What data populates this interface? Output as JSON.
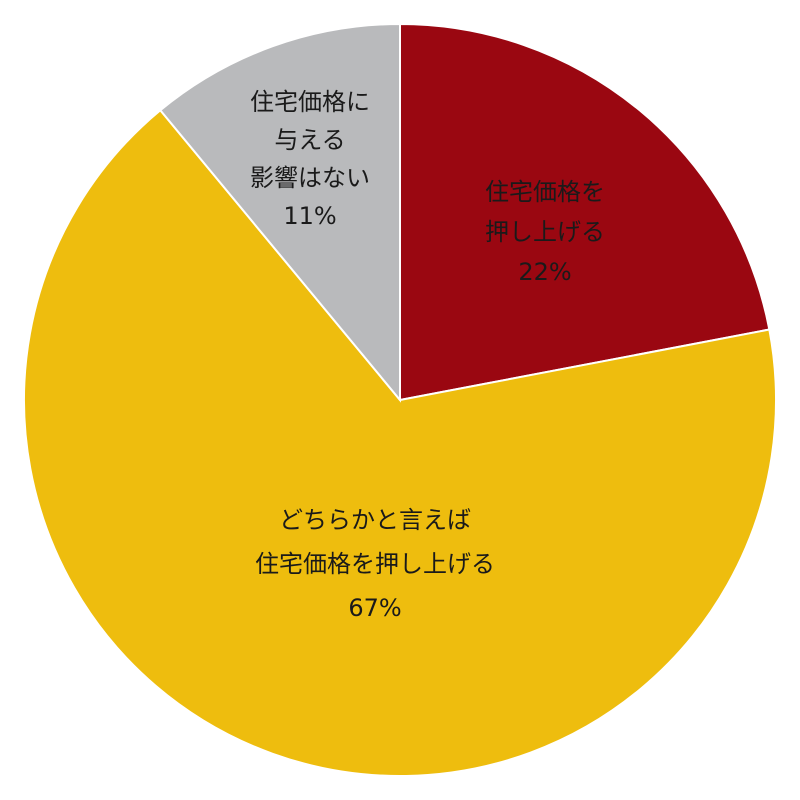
{
  "chart_data": {
    "type": "pie",
    "title": "",
    "slices": [
      {
        "label_lines": [
          "住宅価格を",
          "押し上げる"
        ],
        "value": 22,
        "value_label": "22%",
        "color": "#9a0711",
        "text_color": "#ffffff"
      },
      {
        "label_lines": [
          "どちらかと言えば",
          "住宅価格を押し上げる"
        ],
        "value": 67,
        "value_label": "67%",
        "color": "#eebd0e",
        "text_color": "#1a1a1a"
      },
      {
        "label_lines": [
          "住宅価格に",
          "与える",
          "影響はない"
        ],
        "value": 11,
        "value_label": "11%",
        "color": "#b9babc",
        "text_color": "#1a1a1a"
      }
    ],
    "start_angle_deg": 0,
    "direction": "clockwise"
  }
}
